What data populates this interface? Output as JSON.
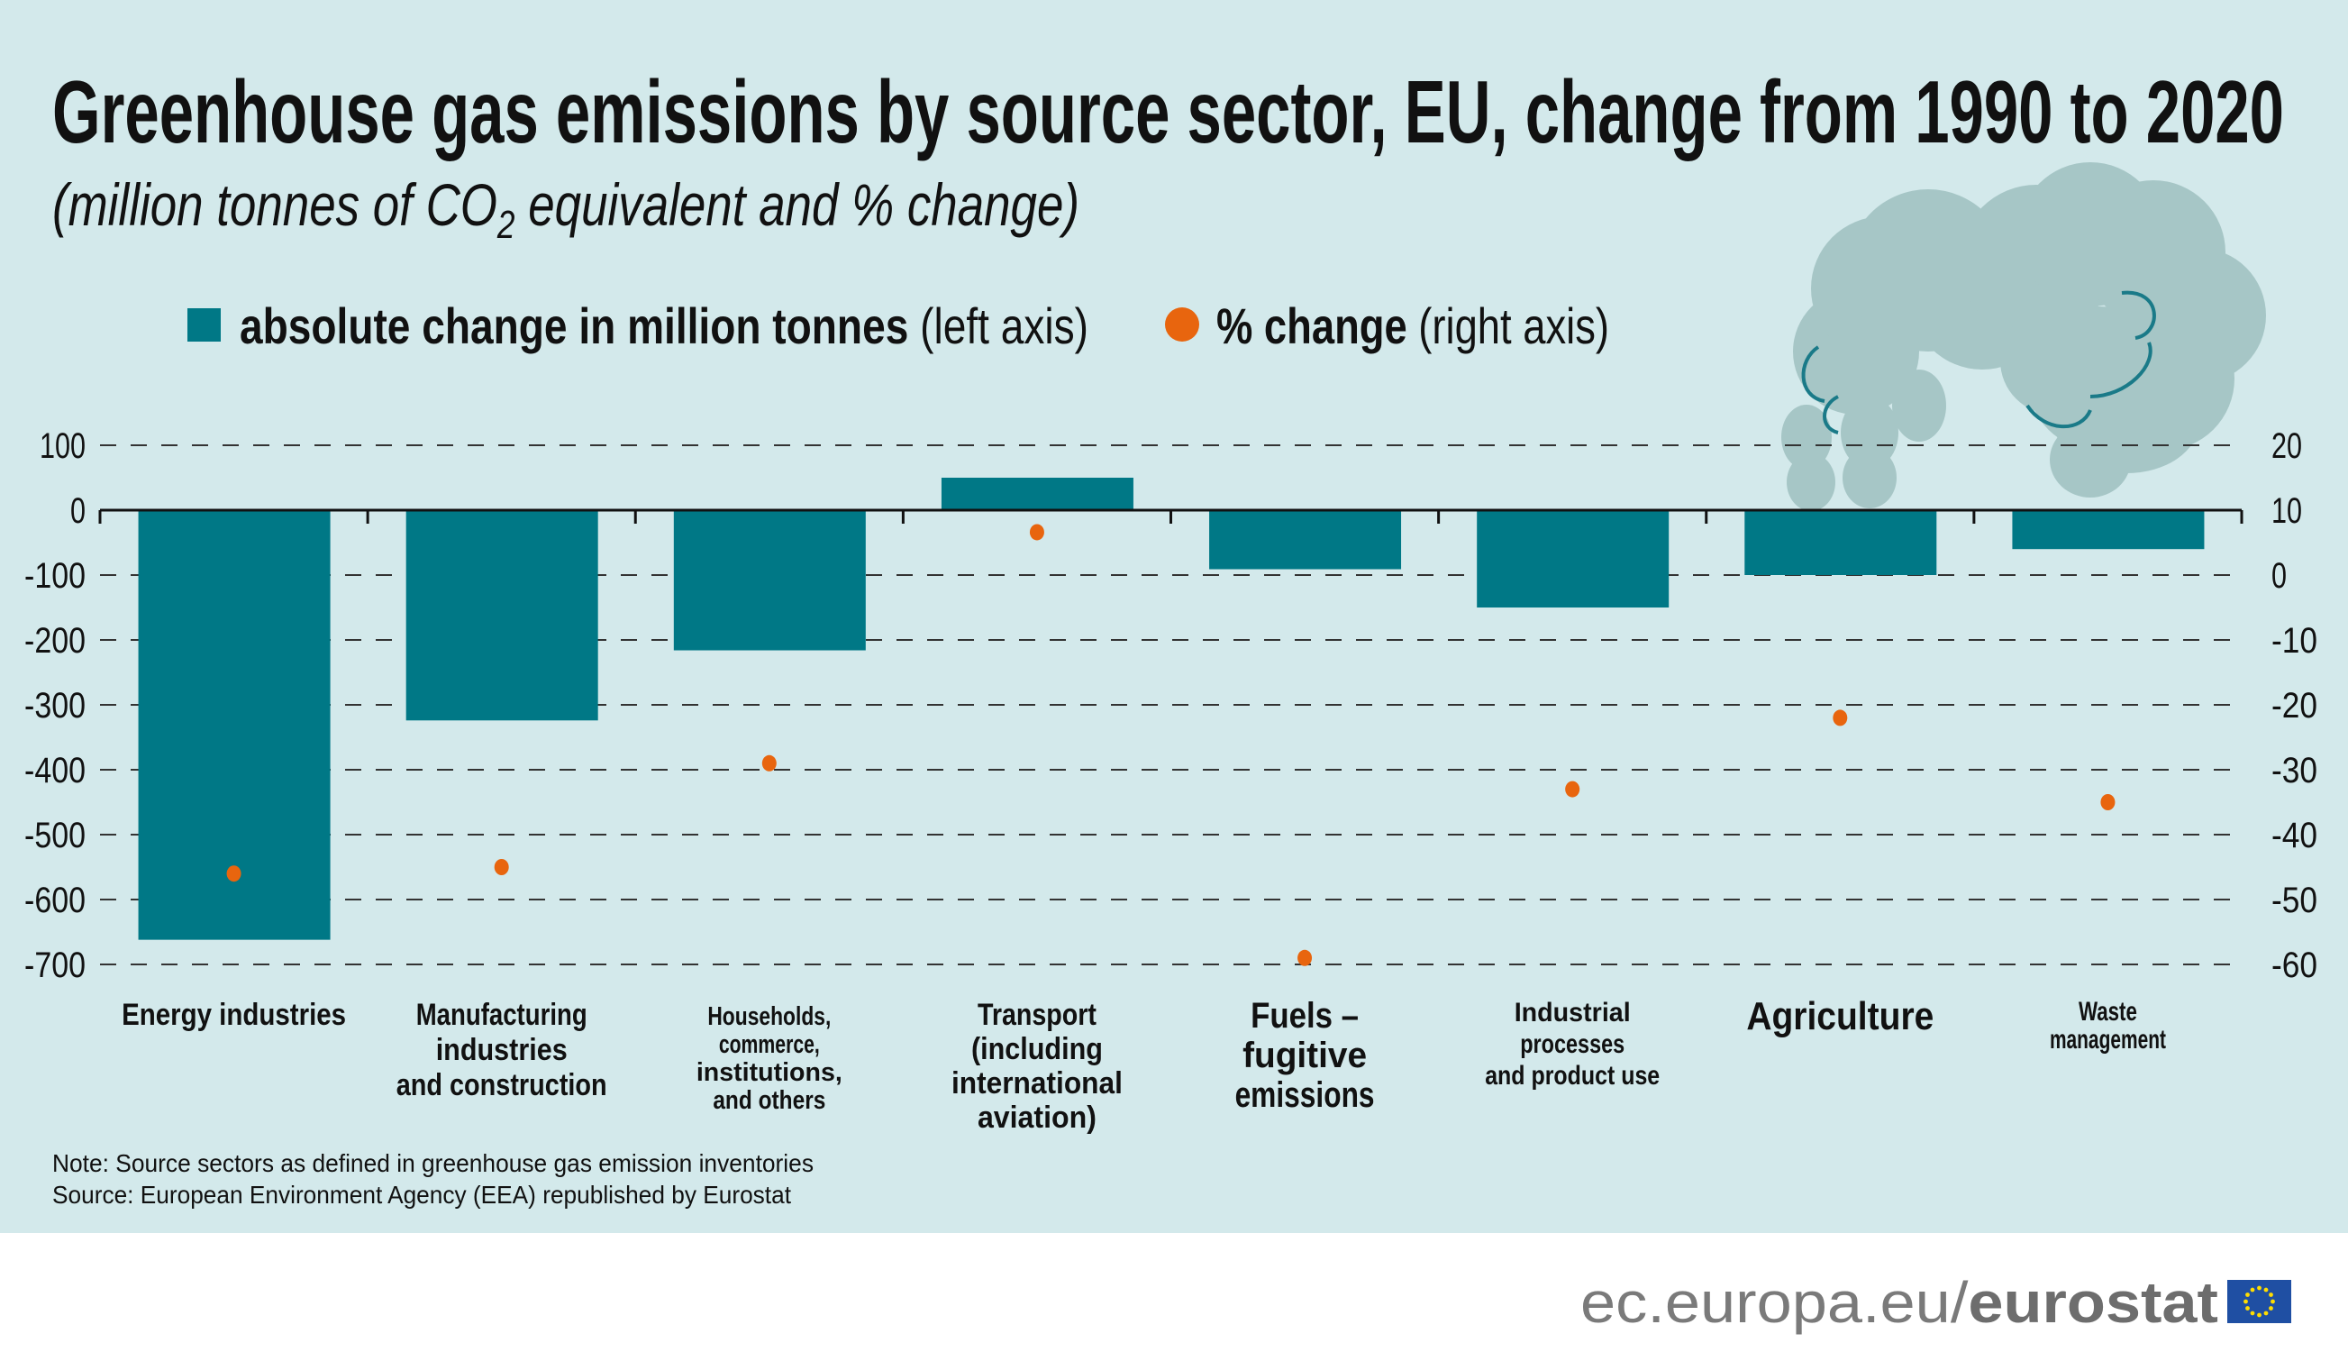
{
  "header": {
    "title": "Greenhouse gas emissions by source sector, EU, change from 1990 to 2020",
    "subtitle_pre": "(million tonnes of CO",
    "subtitle_sub": "2",
    "subtitle_post": " equivalent and % change)"
  },
  "legend": {
    "bar_label_bold": "absolute change in million tonnes",
    "bar_label_rest": " (left axis)",
    "dot_label_bold": "% change",
    "dot_label_rest": " (right axis)"
  },
  "chart_data": {
    "type": "bar",
    "title": "Greenhouse gas emissions by source sector, EU, change from 1990 to 2020",
    "categories": [
      [
        "Energy industries"
      ],
      [
        "Manufacturing",
        "industries",
        "and construction"
      ],
      [
        "Households,",
        "commerce,",
        "institutions,",
        "and others"
      ],
      [
        "Transport",
        "(including",
        "international",
        "aviation)"
      ],
      [
        "Fuels –",
        "fugitive",
        "emissions"
      ],
      [
        "Industrial",
        "processes",
        "and product use"
      ],
      [
        "Agriculture"
      ],
      [
        "Waste",
        "management"
      ]
    ],
    "series": [
      {
        "name": "absolute change in million tonnes (left axis)",
        "type": "bar",
        "axis": "left",
        "color": "#007886",
        "values": [
          -662,
          -324,
          -216,
          50,
          -91,
          -150,
          -100,
          -60
        ]
      },
      {
        "name": "% change (right axis)",
        "type": "scatter",
        "axis": "right",
        "color": "#e8650e",
        "values": [
          -46,
          -45,
          -29,
          6.6,
          -59,
          -33,
          -22,
          -35
        ]
      }
    ],
    "left_axis": {
      "ylim": [
        -700,
        100
      ],
      "ticks": [
        "100",
        "0",
        "-100",
        "-200",
        "-300",
        "-400",
        "-500",
        "-600",
        "-700"
      ]
    },
    "right_axis": {
      "ylim": [
        -60,
        20
      ],
      "ticks": [
        "20",
        "10",
        "0",
        "-10",
        "-20",
        "-30",
        "-40",
        "-50",
        "-60"
      ]
    },
    "grid": true,
    "legend_position": "top-left"
  },
  "notes": {
    "note": "Note: Source sectors as defined in greenhouse gas emission inventories",
    "source": "Source: European Environment Agency (EEA) republished by Eurostat"
  },
  "footer": {
    "url_prefix": "ec.europa.eu/",
    "url_brand": "eurostat"
  },
  "colors": {
    "background": "#d3e9eb",
    "bar": "#007886",
    "dot": "#e8650e",
    "cloud": "#a6c6c6"
  }
}
